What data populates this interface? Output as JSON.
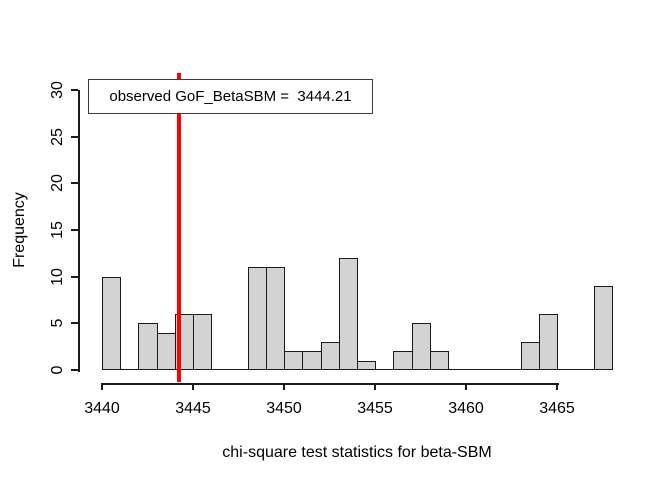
{
  "chart_data": {
    "type": "bar",
    "subtype": "histogram",
    "title": "",
    "xlabel": "chi-square test statistics for beta-SBM",
    "ylabel": "Frequency",
    "bin_start": 3440,
    "bin_width": 1,
    "categories_bin_edges": [
      3440,
      3441,
      3442,
      3443,
      3444,
      3445,
      3446,
      3447,
      3448,
      3449,
      3450,
      3451,
      3452,
      3453,
      3454,
      3455,
      3456,
      3457,
      3458,
      3459,
      3460,
      3461,
      3462,
      3463,
      3464,
      3465,
      3466,
      3467,
      3468
    ],
    "values": [
      10,
      0,
      5,
      4,
      6,
      6,
      0,
      0,
      11,
      11,
      2,
      2,
      3,
      12,
      1,
      0,
      2,
      5,
      2,
      0,
      0,
      0,
      0,
      3,
      6,
      0,
      0,
      9
    ],
    "x_ticks": [
      3440,
      3445,
      3450,
      3455,
      3460,
      3465
    ],
    "y_ticks": [
      0,
      5,
      10,
      15,
      20,
      25,
      30
    ],
    "xlim": [
      3440,
      3468
    ],
    "ylim": [
      0,
      30
    ],
    "grid": "off",
    "legend_position": "top-left",
    "legend_label": "observed GoF_BetaSBM =  3444.21",
    "annotation_line": {
      "value": 3444.21,
      "color": "#ff0000"
    },
    "bar_fill": "#d3d3d3",
    "bar_border": "#1a1a1a",
    "background": "#ffffff"
  }
}
